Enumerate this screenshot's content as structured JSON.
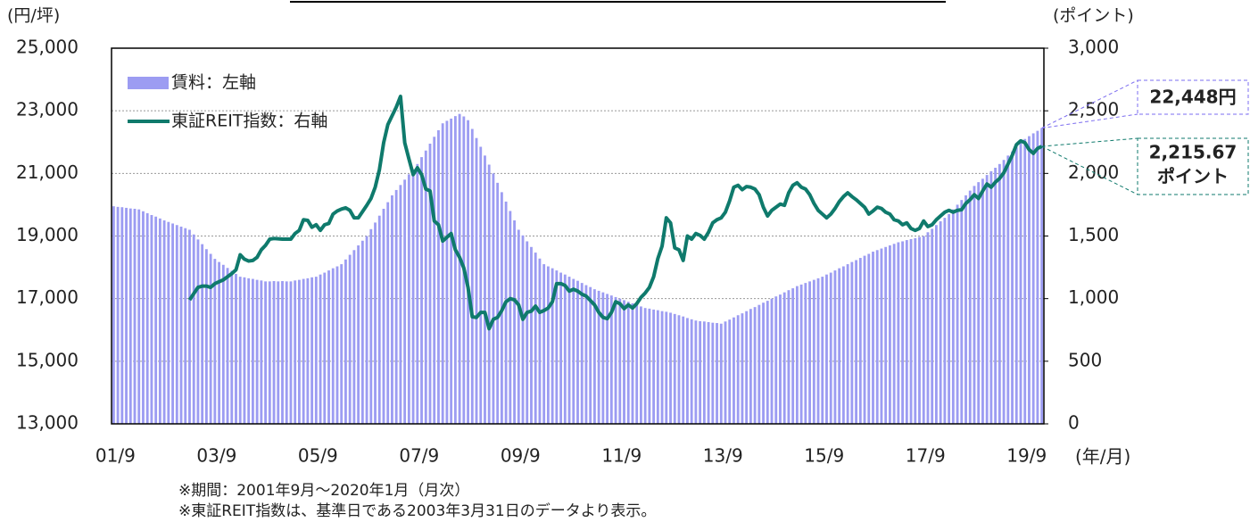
{
  "chart_data": {
    "type": "combo",
    "y_unit_label": "(円/坪)",
    "y2_unit_label": "(ポイント)",
    "x_label": "(年/月)",
    "notes": [
      "※期間：2001年9月～2020年1月（月次）",
      "※東証REIT指数は、基準日である2003年3月31日のデータより表示。"
    ],
    "annotations": [
      "22,448円",
      "2,215.67",
      "ポイント"
    ],
    "ylim": [
      13000,
      25000
    ],
    "yticks": [
      {
        "value": 13000,
        "label": "13,000"
      },
      {
        "value": 15000,
        "label": "15,000"
      },
      {
        "value": 17000,
        "label": "17,000"
      },
      {
        "value": 19000,
        "label": "19,000"
      },
      {
        "value": 21000,
        "label": "21,000"
      },
      {
        "value": 23000,
        "label": "23,000"
      },
      {
        "value": 25000,
        "label": "25,000"
      }
    ],
    "y2lim": [
      0,
      3000
    ],
    "y2ticks": [
      0,
      500,
      {
        "value": 1000,
        "label": "1,000"
      },
      {
        "value": 1500,
        "label": "1,500"
      },
      {
        "value": 2000,
        "label": "2,000"
      },
      {
        "value": 2500,
        "label": "2,500"
      },
      {
        "value": 3000,
        "label": "3,000"
      }
    ],
    "grid": true,
    "legend": "top-left",
    "categories": [
      "01/9",
      null,
      null,
      null,
      null,
      null,
      null,
      null,
      null,
      null,
      null,
      null,
      null,
      null,
      null,
      null,
      null,
      null,
      null,
      null,
      null,
      null,
      null,
      null,
      "03/9",
      null,
      null,
      null,
      null,
      null,
      null,
      null,
      null,
      null,
      null,
      null,
      null,
      null,
      null,
      null,
      null,
      null,
      null,
      null,
      null,
      null,
      null,
      null,
      "05/9",
      null,
      null,
      null,
      null,
      null,
      null,
      null,
      null,
      null,
      null,
      null,
      null,
      null,
      null,
      null,
      null,
      null,
      null,
      null,
      null,
      null,
      null,
      null,
      "07/9",
      null,
      null,
      null,
      null,
      null,
      null,
      null,
      null,
      null,
      null,
      null,
      null,
      null,
      null,
      null,
      null,
      null,
      null,
      null,
      null,
      null,
      null,
      null,
      "09/9",
      null,
      null,
      null,
      null,
      null,
      null,
      null,
      null,
      null,
      null,
      null,
      null,
      null,
      null,
      null,
      null,
      null,
      null,
      null,
      null,
      null,
      null,
      null,
      "11/9",
      null,
      null,
      null,
      null,
      null,
      null,
      null,
      null,
      null,
      null,
      null,
      null,
      null,
      null,
      null,
      null,
      null,
      null,
      null,
      null,
      null,
      null,
      null,
      "13/9",
      null,
      null,
      null,
      null,
      null,
      null,
      null,
      null,
      null,
      null,
      null,
      null,
      null,
      null,
      null,
      null,
      null,
      null,
      null,
      null,
      null,
      null,
      null,
      "15/9",
      null,
      null,
      null,
      null,
      null,
      null,
      null,
      null,
      null,
      null,
      null,
      null,
      null,
      null,
      null,
      null,
      null,
      null,
      null,
      null,
      null,
      null,
      null,
      "17/9",
      null,
      null,
      null,
      null,
      null,
      null,
      null,
      null,
      null,
      null,
      null,
      null,
      null,
      null,
      null,
      null,
      null,
      null,
      null,
      null,
      null,
      null,
      null,
      "19/9",
      null,
      null,
      null,
      null
    ],
    "series": [
      {
        "name": "賃料：左軸",
        "type": "bar",
        "color": "#9c9cf2",
        "values": [
          19950,
          19930,
          19920,
          19900,
          19880,
          19870,
          19850,
          19790,
          19730,
          19670,
          19620,
          19560,
          19500,
          19450,
          19400,
          19350,
          19300,
          19250,
          19200,
          19050,
          18890,
          18740,
          18580,
          18430,
          18270,
          18170,
          18080,
          17980,
          17890,
          17790,
          17700,
          17680,
          17650,
          17630,
          17600,
          17580,
          17550,
          17550,
          17560,
          17550,
          17560,
          17550,
          17550,
          17580,
          17600,
          17630,
          17650,
          17680,
          17700,
          17770,
          17830,
          17900,
          17970,
          18030,
          18100,
          18250,
          18400,
          18550,
          18700,
          18850,
          19000,
          19220,
          19430,
          19650,
          19870,
          20080,
          20300,
          20470,
          20630,
          20800,
          20970,
          21130,
          21300,
          21520,
          21730,
          21950,
          22170,
          22380,
          22600,
          22680,
          22750,
          22830,
          22900,
          22820,
          22700,
          22420,
          22130,
          21850,
          21570,
          21280,
          21000,
          20700,
          20400,
          20100,
          19800,
          19500,
          19200,
          19020,
          18830,
          18650,
          18470,
          18280,
          18100,
          18030,
          17970,
          17900,
          17830,
          17770,
          17700,
          17630,
          17570,
          17500,
          17430,
          17370,
          17300,
          17250,
          17200,
          17150,
          17100,
          17050,
          17000,
          16950,
          16900,
          16850,
          16800,
          16750,
          16700,
          16680,
          16650,
          16630,
          16600,
          16580,
          16550,
          16510,
          16470,
          16430,
          16380,
          16340,
          16300,
          16280,
          16270,
          16250,
          16230,
          16220,
          16200,
          16270,
          16330,
          16400,
          16470,
          16530,
          16600,
          16670,
          16730,
          16800,
          16870,
          16930,
          17000,
          17070,
          17130,
          17200,
          17270,
          17330,
          17400,
          17450,
          17500,
          17550,
          17600,
          17650,
          17700,
          17770,
          17830,
          17900,
          17970,
          18030,
          18100,
          18170,
          18230,
          18300,
          18370,
          18430,
          18500,
          18550,
          18600,
          18650,
          18700,
          18750,
          18800,
          18830,
          18870,
          18900,
          18930,
          18970,
          19000,
          19120,
          19230,
          19350,
          19470,
          19580,
          19700,
          19850,
          20000,
          20150,
          20300,
          20450,
          20600,
          20720,
          20830,
          20950,
          21070,
          21180,
          21300,
          21430,
          21570,
          21700,
          21830,
          21970,
          22100,
          22190,
          22280,
          22360,
          22448
        ]
      },
      {
        "name": "東証REIT指数：右軸",
        "type": "line",
        "axis": "y2",
        "color": "#0f7a6c",
        "values": [
          null,
          null,
          null,
          null,
          null,
          null,
          null,
          null,
          null,
          null,
          null,
          null,
          null,
          null,
          null,
          null,
          null,
          null,
          990,
          1040,
          1090,
          1100,
          1100,
          1090,
          1120,
          1135,
          1150,
          1175,
          1200,
          1230,
          1350,
          1315,
          1300,
          1305,
          1330,
          1390,
          1425,
          1475,
          1480,
          1478,
          1475,
          1475,
          1475,
          1520,
          1545,
          1630,
          1625,
          1570,
          1590,
          1545,
          1590,
          1600,
          1675,
          1700,
          1715,
          1725,
          1705,
          1645,
          1645,
          1695,
          1745,
          1800,
          1890,
          2030,
          2245,
          2390,
          2460,
          2530,
          2615,
          2245,
          2115,
          1990,
          2045,
          1990,
          1875,
          1860,
          1620,
          1590,
          1460,
          1490,
          1520,
          1390,
          1330,
          1245,
          1090,
          855,
          850,
          890,
          890,
          760,
          835,
          850,
          905,
          975,
          1000,
          990,
          950,
          835,
          890,
          900,
          940,
          890,
          905,
          925,
          975,
          1120,
          1120,
          1105,
          1060,
          1075,
          1060,
          1035,
          1020,
          985,
          950,
          890,
          850,
          840,
          890,
          975,
          960,
          920,
          950,
          925,
          960,
          1010,
          1045,
          1090,
          1175,
          1320,
          1420,
          1645,
          1605,
          1405,
          1390,
          1305,
          1500,
          1475,
          1520,
          1505,
          1475,
          1530,
          1605,
          1630,
          1645,
          1690,
          1780,
          1890,
          1905,
          1870,
          1895,
          1890,
          1875,
          1830,
          1730,
          1660,
          1705,
          1730,
          1755,
          1745,
          1845,
          1905,
          1925,
          1890,
          1875,
          1830,
          1760,
          1705,
          1675,
          1645,
          1675,
          1720,
          1775,
          1815,
          1845,
          1815,
          1790,
          1760,
          1730,
          1675,
          1700,
          1730,
          1720,
          1690,
          1675,
          1630,
          1620,
          1590,
          1605,
          1560,
          1545,
          1560,
          1620,
          1575,
          1590,
          1630,
          1660,
          1690,
          1705,
          1690,
          1705,
          1710,
          1760,
          1790,
          1830,
          1800,
          1860,
          1915,
          1890,
          1930,
          1960,
          2005,
          2075,
          2145,
          2230,
          2260,
          2245,
          2190,
          2160,
          2200,
          2215.67
        ]
      }
    ]
  }
}
